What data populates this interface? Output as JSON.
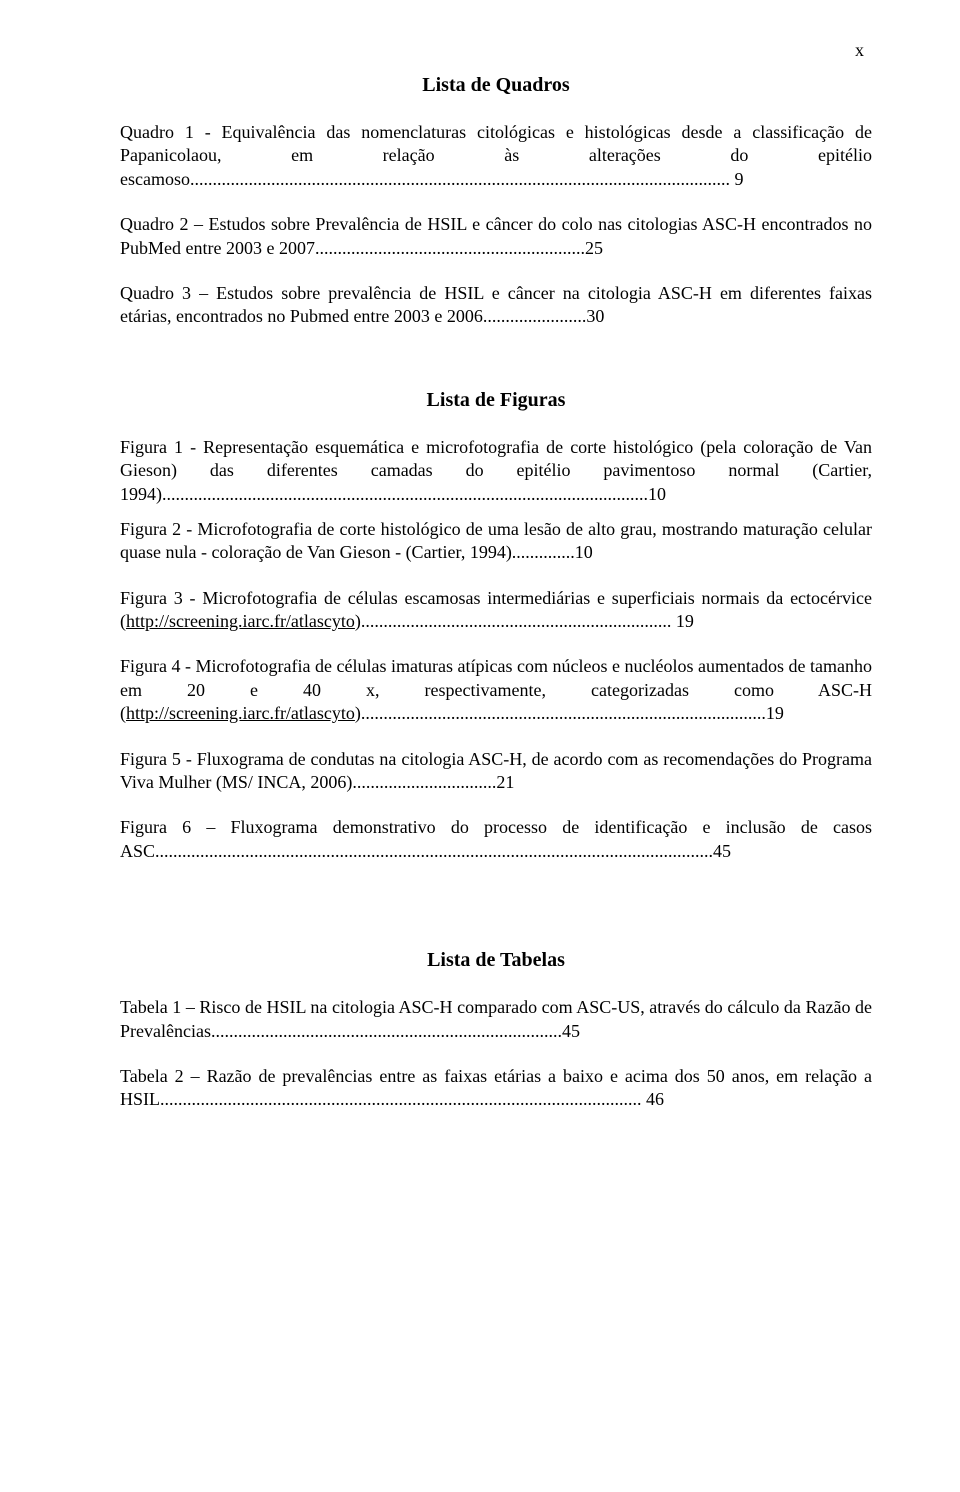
{
  "page_marker": "x",
  "lista_quadros": {
    "title": "Lista de Quadros",
    "items": [
      "Quadro 1 - Equivalência das nomenclaturas citológicas e histológicas desde a classificação de Papanicolaou, em relação às alterações do epitélio escamoso........................................................................................................................ 9",
      "Quadro 2 – Estudos sobre Prevalência de HSIL e câncer do colo nas citologias ASC-H encontrados no PubMed entre 2003 e 2007............................................................25",
      "Quadro 3 – Estudos sobre prevalência de HSIL e câncer na citologia ASC-H em diferentes faixas etárias, encontrados no Pubmed entre 2003 e 2006.......................30"
    ]
  },
  "lista_figuras": {
    "title": "Lista de Figuras",
    "items": [
      "Figura 1 - Representação esquemática e microfotografia de corte histológico (pela coloração de Van Gieson) das diferentes camadas do epitélio pavimentoso normal (Cartier, 1994)............................................................................................................10",
      "Figura 2 - Microfotografia de corte histológico de uma lesão de alto grau, mostrando maturação celular quase nula - coloração de Van Gieson - (Cartier, 1994)..............10"
    ],
    "fig3": {
      "pre": "Figura 3 - Microfotografia de células escamosas intermediárias e superficiais normais da ectocérvice (",
      "link": "http://screening.iarc.fr/atlascyto",
      "post": ")..................................................................... 19"
    },
    "fig4": {
      "pre": "Figura 4 - Microfotografia de células imaturas atípicas com núcleos e nucléolos aumentados de tamanho em 20 e 40 x,  respectivamente, categorizadas como ASC-H (",
      "link": "http://screening.iarc.fr/atlascyto",
      "post": ")..........................................................................................19"
    },
    "rest": [
      "Figura 5 - Fluxograma de condutas na citologia ASC-H, de acordo com as recomendações do Programa Viva Mulher (MS/ INCA, 2006)................................21",
      "Figura 6 – Fluxograma demonstrativo do processo de identificação e inclusão de casos ASC............................................................................................................................45"
    ]
  },
  "lista_tabelas": {
    "title": "Lista de Tabelas",
    "items": [
      "Tabela 1 – Risco de HSIL na citologia ASC-H comparado com ASC-US, através do cálculo da Razão de Prevalências..............................................................................45",
      "Tabela 2 – Razão de prevalências entre as faixas etárias a baixo e acima dos 50 anos, em relação a HSIL........................................................................................................... 46"
    ]
  }
}
